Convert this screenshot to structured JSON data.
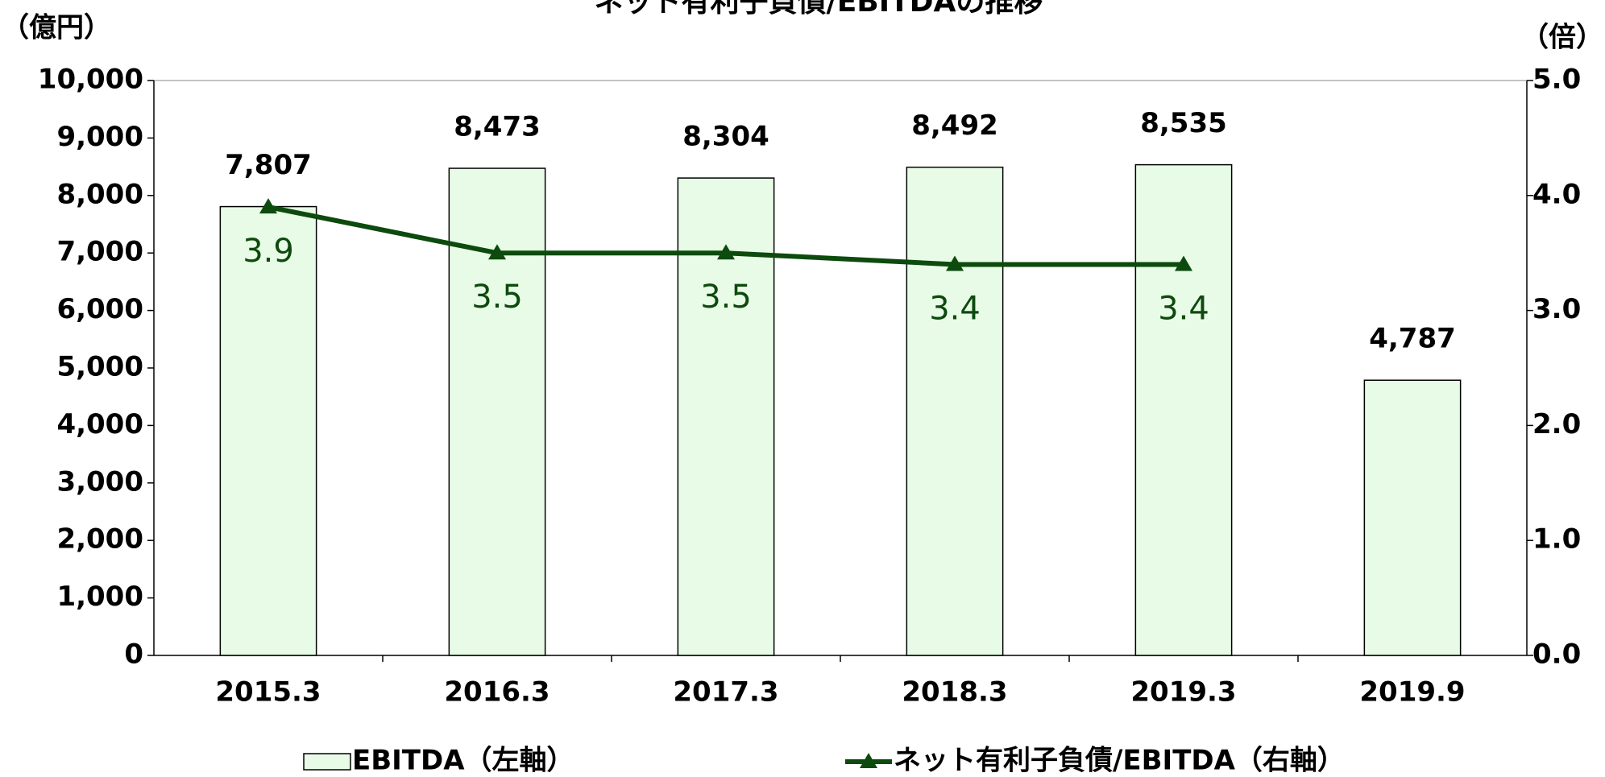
{
  "chart_data": {
    "type": "bar",
    "title": "ネット有利子負債/EBITDAの推移",
    "y_axis_label": "（億円）",
    "y2_axis_label": "（倍）",
    "categories": [
      "2015.3",
      "2016.3",
      "2017.3",
      "2018.3",
      "2019.3",
      "2019.9"
    ],
    "series": [
      {
        "name": "EBITDA（左軸）",
        "type": "bar",
        "color": "#e8fbe6",
        "values": [
          7807,
          8473,
          8304,
          8492,
          8535,
          4787
        ],
        "value_labels": [
          "7,807",
          "8,473",
          "8,304",
          "8,492",
          "8,535",
          "4,787"
        ]
      },
      {
        "name": "ネット有利子負債/EBITDA（右軸）",
        "type": "line",
        "axis": "y2",
        "color": "#0d4a0d",
        "values": [
          3.9,
          3.5,
          3.5,
          3.4,
          3.4,
          null
        ]
      }
    ],
    "ylim": [
      0,
      10000
    ],
    "yticks": [
      0,
      {
        "value": 1000,
        "label": "1,000"
      },
      {
        "value": 2000,
        "label": "2,000"
      },
      {
        "value": 3000,
        "label": "3,000"
      },
      {
        "value": 4000,
        "label": "4,000"
      },
      {
        "value": 5000,
        "label": "5,000"
      },
      {
        "value": 6000,
        "label": "6,000"
      },
      {
        "value": 7000,
        "label": "7,000"
      },
      {
        "value": 8000,
        "label": "8,000"
      },
      {
        "value": 9000,
        "label": "9,000"
      },
      {
        "value": 10000,
        "label": "10,000"
      }
    ],
    "y2lim": [
      0,
      5
    ],
    "y2ticks": [
      {
        "value": 0,
        "label": "0.0"
      },
      {
        "value": 1,
        "label": "1.0"
      },
      {
        "value": 2,
        "label": "2.0"
      },
      {
        "value": 3,
        "label": "3.0"
      },
      {
        "value": 4,
        "label": "4.0"
      },
      {
        "value": 5,
        "label": "5.0"
      }
    ]
  }
}
